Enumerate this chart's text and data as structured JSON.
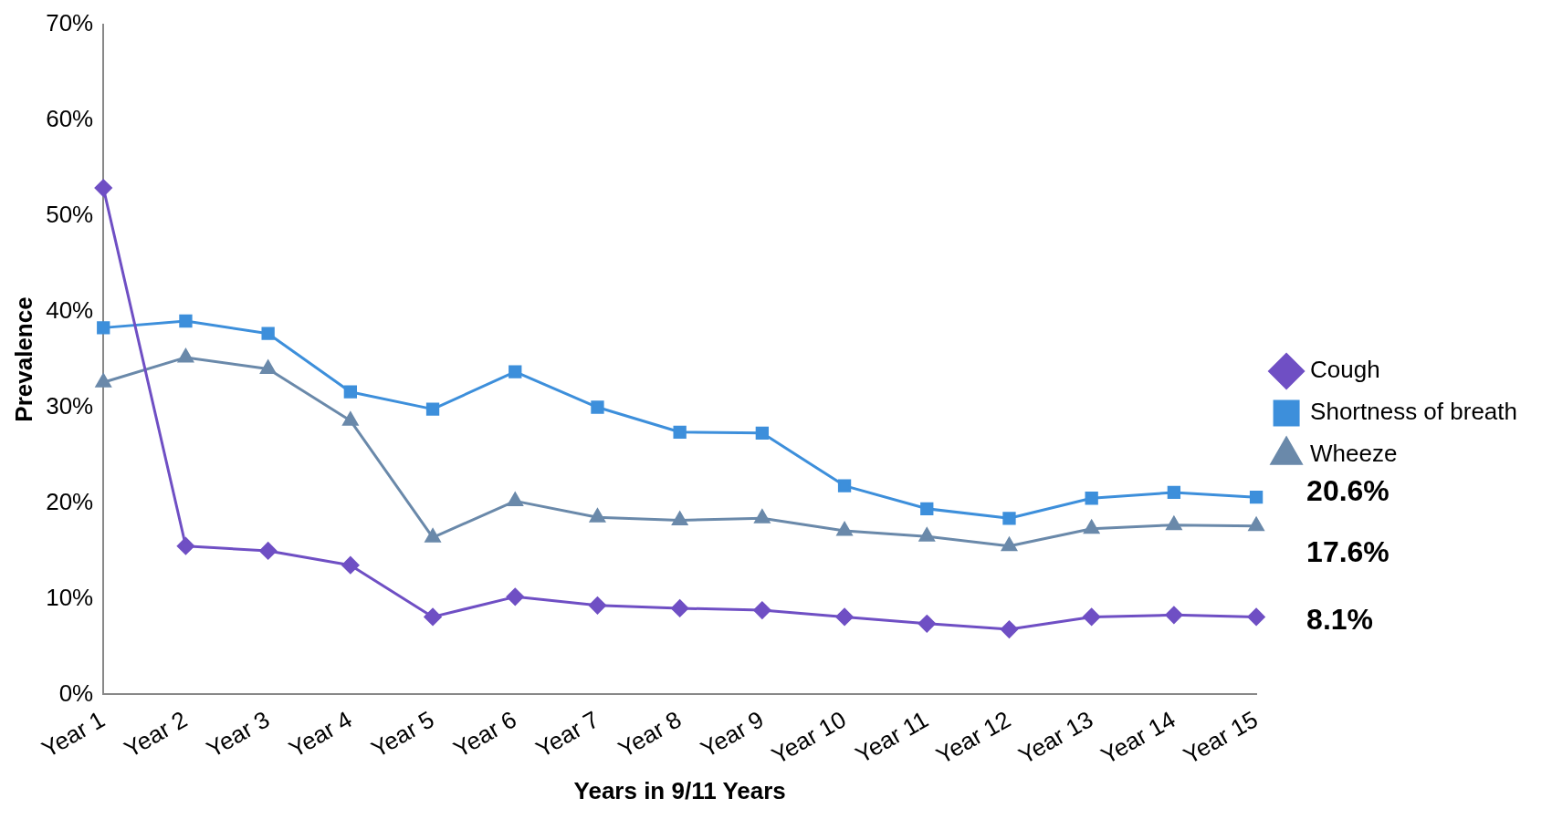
{
  "chart_data": {
    "type": "line",
    "xlabel": "Years in 9/11 Years",
    "ylabel": "Prevalence",
    "categories": [
      "Year 1",
      "Year 2",
      "Year 3",
      "Year 4",
      "Year 5",
      "Year 6",
      "Year 7",
      "Year 8",
      "Year 9",
      "Year 10",
      "Year 11",
      "Year 12",
      "Year 13",
      "Year 14",
      "Year 15"
    ],
    "series": [
      {
        "name": "Cough",
        "color": "#6f4fc4",
        "marker": "diamond",
        "values": [
          52.9,
          15.5,
          15.0,
          13.5,
          8.1,
          10.2,
          9.3,
          9.0,
          8.8,
          8.1,
          7.4,
          6.8,
          8.1,
          8.3,
          8.1
        ],
        "value_labels": [
          null,
          null,
          null,
          null,
          null,
          null,
          null,
          null,
          null,
          null,
          null,
          null,
          null,
          null,
          "8.1%"
        ]
      },
      {
        "name": "Shortness of breath",
        "color": "#3d8fdb",
        "marker": "square",
        "values": [
          38.3,
          39.0,
          37.7,
          31.6,
          29.8,
          33.7,
          30.0,
          27.4,
          27.3,
          21.8,
          19.4,
          18.4,
          20.5,
          21.1,
          20.6
        ],
        "value_labels": [
          null,
          null,
          null,
          null,
          null,
          null,
          null,
          null,
          null,
          null,
          null,
          null,
          null,
          null,
          "20.6%"
        ]
      },
      {
        "name": "Wheeze",
        "color": "#6a89aa",
        "marker": "triangle",
        "values": [
          32.6,
          35.2,
          34.0,
          28.6,
          16.4,
          20.2,
          18.5,
          18.2,
          18.4,
          17.1,
          16.5,
          15.5,
          17.3,
          17.7,
          17.6
        ],
        "value_labels": [
          null,
          null,
          null,
          null,
          null,
          null,
          null,
          null,
          null,
          null,
          null,
          null,
          null,
          null,
          "17.6%"
        ]
      }
    ],
    "ylim": [
      0,
      70
    ],
    "yticks": [
      {
        "value": 0,
        "label": "0%"
      },
      {
        "value": 10,
        "label": "10%"
      },
      {
        "value": 20,
        "label": "20%"
      },
      {
        "value": 30,
        "label": "30%"
      },
      {
        "value": 40,
        "label": "40%"
      },
      {
        "value": 50,
        "label": "50%"
      },
      {
        "value": 60,
        "label": "60%"
      },
      {
        "value": 70,
        "label": "70%"
      }
    ],
    "grid": false,
    "legend": "right",
    "line_style": "solid"
  }
}
